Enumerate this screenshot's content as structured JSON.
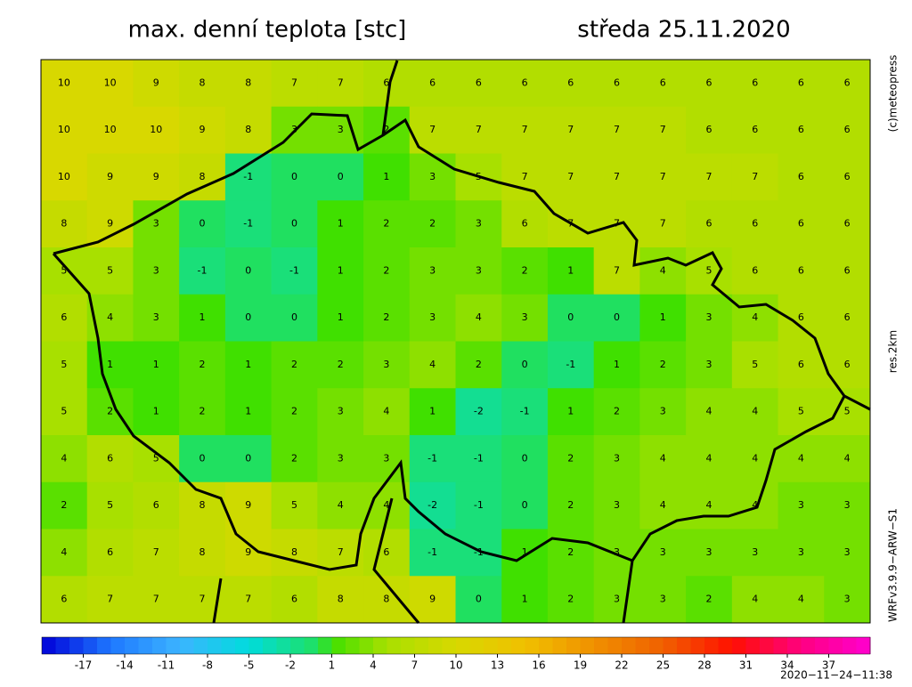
{
  "header": {
    "title": "max. denní teplota [stc]",
    "date": "středa 25.11.2020"
  },
  "side_labels": {
    "copyright": "(c)meteopress",
    "resolution": "res.2km",
    "model": "WRFv3.9.9−ARW−S1"
  },
  "timestamp": "2020−11−24−11:38",
  "colorbar": {
    "range": [
      -20,
      40
    ],
    "ticks": [
      -17,
      -14,
      -11,
      -8,
      -5,
      -2,
      1,
      4,
      7,
      10,
      13,
      16,
      19,
      22,
      25,
      28,
      31,
      34,
      37
    ],
    "stops": [
      [
        -20,
        "#0000d8"
      ],
      [
        -15,
        "#1e78ff"
      ],
      [
        -10,
        "#3cb4ff"
      ],
      [
        -5,
        "#00dcdc"
      ],
      [
        0,
        "#20e060"
      ],
      [
        1,
        "#40e000"
      ],
      [
        5,
        "#a8e000"
      ],
      [
        10,
        "#d8d800"
      ],
      [
        15,
        "#f0c000"
      ],
      [
        20,
        "#f09000"
      ],
      [
        25,
        "#f06000"
      ],
      [
        30,
        "#ff1000"
      ],
      [
        35,
        "#ff0080"
      ],
      [
        40,
        "#ff00d0"
      ]
    ]
  },
  "grid": [
    [
      10,
      10,
      9,
      8,
      8,
      7,
      7,
      6,
      6,
      6,
      6,
      6,
      6,
      6,
      6,
      6,
      6,
      6
    ],
    [
      10,
      10,
      10,
      9,
      8,
      3,
      3,
      2,
      7,
      7,
      7,
      7,
      7,
      7,
      6,
      6,
      6,
      6
    ],
    [
      10,
      9,
      9,
      8,
      -1,
      0,
      0,
      1,
      3,
      5,
      7,
      7,
      7,
      7,
      7,
      7,
      6,
      6
    ],
    [
      8,
      9,
      3,
      0,
      -1,
      0,
      1,
      2,
      2,
      3,
      6,
      7,
      7,
      7,
      6,
      6,
      6,
      6
    ],
    [
      5,
      5,
      3,
      -1,
      0,
      -1,
      1,
      2,
      3,
      3,
      2,
      1,
      7,
      4,
      5,
      6,
      6,
      6
    ],
    [
      6,
      4,
      3,
      1,
      0,
      0,
      1,
      2,
      3,
      4,
      3,
      0,
      0,
      1,
      3,
      4,
      6,
      6
    ],
    [
      5,
      1,
      1,
      2,
      1,
      2,
      2,
      3,
      4,
      2,
      0,
      -1,
      1,
      2,
      3,
      5,
      6,
      6
    ],
    [
      5,
      2,
      1,
      2,
      1,
      2,
      3,
      4,
      1,
      -2,
      -1,
      1,
      2,
      3,
      4,
      4,
      5,
      5
    ],
    [
      4,
      6,
      5,
      0,
      0,
      2,
      3,
      3,
      -1,
      -1,
      0,
      2,
      3,
      4,
      4,
      4,
      4,
      4
    ],
    [
      2,
      5,
      6,
      8,
      9,
      5,
      4,
      4,
      -2,
      -1,
      0,
      2,
      3,
      4,
      4,
      4,
      3,
      3
    ],
    [
      4,
      6,
      7,
      8,
      9,
      8,
      7,
      6,
      -1,
      -1,
      1,
      2,
      3,
      3,
      3,
      3,
      3,
      3
    ],
    [
      6,
      7,
      7,
      7,
      7,
      6,
      8,
      8,
      9,
      0,
      1,
      2,
      3,
      3,
      2,
      4,
      4,
      3
    ]
  ]
}
